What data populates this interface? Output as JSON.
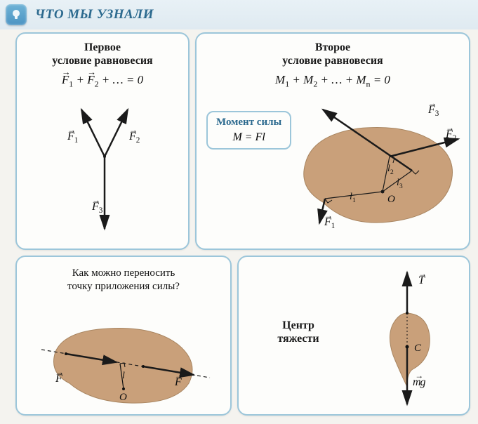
{
  "header": {
    "title": "ЧТО МЫ УЗНАЛИ"
  },
  "panels": {
    "first": {
      "title_line1": "Первое",
      "title_line2": "условие равновесия",
      "formula_html": "<span class='vec'>F</span><span class='sub'>1</span> + <span class='vec'>F</span><span class='sub'>2</span> + … = 0",
      "F1": "F",
      "F1sub": "1",
      "F2": "F",
      "F2sub": "2",
      "F3": "F",
      "F3sub": "3"
    },
    "second": {
      "title_line1": "Второе",
      "title_line2": "условие равновесия",
      "formula_html": "M<span class='sub'>1</span> + M<span class='sub'>2</span> + … + M<span class='sub'>n</span> = 0",
      "moment_label": "Момент силы",
      "moment_formula": "M = Fl",
      "F1": "F",
      "F1sub": "1",
      "F2": "F",
      "F2sub": "2",
      "F3": "F",
      "F3sub": "3",
      "l1": "l",
      "l1sub": "1",
      "l2": "l",
      "l2sub": "2",
      "l3": "l",
      "l3sub": "3",
      "O": "O"
    },
    "third": {
      "question_html": "Как можно переносить<br>точку приложения силы?",
      "F": "F",
      "l": "l",
      "O": "O"
    },
    "fourth": {
      "title_line1": "Центр",
      "title_line2": "тяжести",
      "T": "T",
      "C": "C",
      "mg": "mg"
    }
  },
  "colors": {
    "panel_border": "#9cc6da",
    "panel_bg": "#fdfdfb",
    "header_text": "#2c6a8f",
    "blob_fill": "#c9a07a",
    "blob_fill_dark": "#b8926f",
    "arrow": "#1a1a1a"
  }
}
